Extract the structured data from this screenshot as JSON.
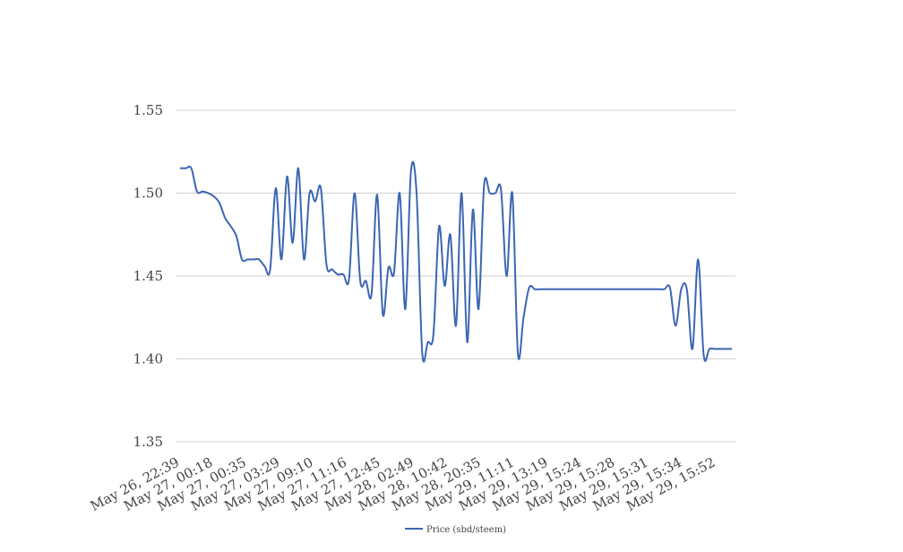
{
  "chart_data": {
    "type": "line",
    "title": "",
    "xlabel": "",
    "ylabel": "",
    "ylim": [
      1.35,
      1.55
    ],
    "yticks": [
      "1.35",
      "1.40",
      "1.45",
      "1.50",
      "1.55"
    ],
    "grid": true,
    "legend_position": "bottom",
    "x_tick_labels": [
      "May 26, 22:39",
      "May 27, 00:18",
      "May 27, 00:35",
      "May 27, 03:29",
      "May 27, 09:10",
      "May 27, 11:16",
      "May 27, 12:45",
      "May 28, 02:49",
      "May 28, 10:42",
      "May 28, 20:35",
      "May 29, 11:11",
      "May 29, 13:19",
      "May 29, 15:24",
      "May 29, 15:28",
      "May 29, 15:31",
      "May 29, 15:34",
      "May 29, 15:52"
    ],
    "series": [
      {
        "name": "Price (sbd/steem)",
        "color": "#3b66b3",
        "values": [
          1.515,
          1.515,
          1.515,
          1.501,
          1.501,
          1.5,
          1.498,
          1.494,
          1.485,
          1.48,
          1.474,
          1.46,
          1.46,
          1.46,
          1.46,
          1.456,
          1.454,
          1.503,
          1.46,
          1.51,
          1.47,
          1.515,
          1.46,
          1.5,
          1.495,
          1.503,
          1.457,
          1.454,
          1.451,
          1.451,
          1.448,
          1.5,
          1.447,
          1.447,
          1.439,
          1.499,
          1.427,
          1.455,
          1.452,
          1.5,
          1.43,
          1.513,
          1.5,
          1.404,
          1.41,
          1.415,
          1.48,
          1.444,
          1.475,
          1.42,
          1.5,
          1.41,
          1.49,
          1.43,
          1.505,
          1.5,
          1.5,
          1.502,
          1.45,
          1.5,
          1.403,
          1.425,
          1.443,
          1.442,
          1.442,
          1.442,
          1.442,
          1.442,
          1.442,
          1.442,
          1.442,
          1.442,
          1.442,
          1.442,
          1.442,
          1.442,
          1.442,
          1.442,
          1.442,
          1.442,
          1.442,
          1.442,
          1.442,
          1.442,
          1.442,
          1.442,
          1.442,
          1.443,
          1.42,
          1.442,
          1.442,
          1.406,
          1.46,
          1.402,
          1.406,
          1.406,
          1.406,
          1.406,
          1.406
        ]
      }
    ]
  }
}
